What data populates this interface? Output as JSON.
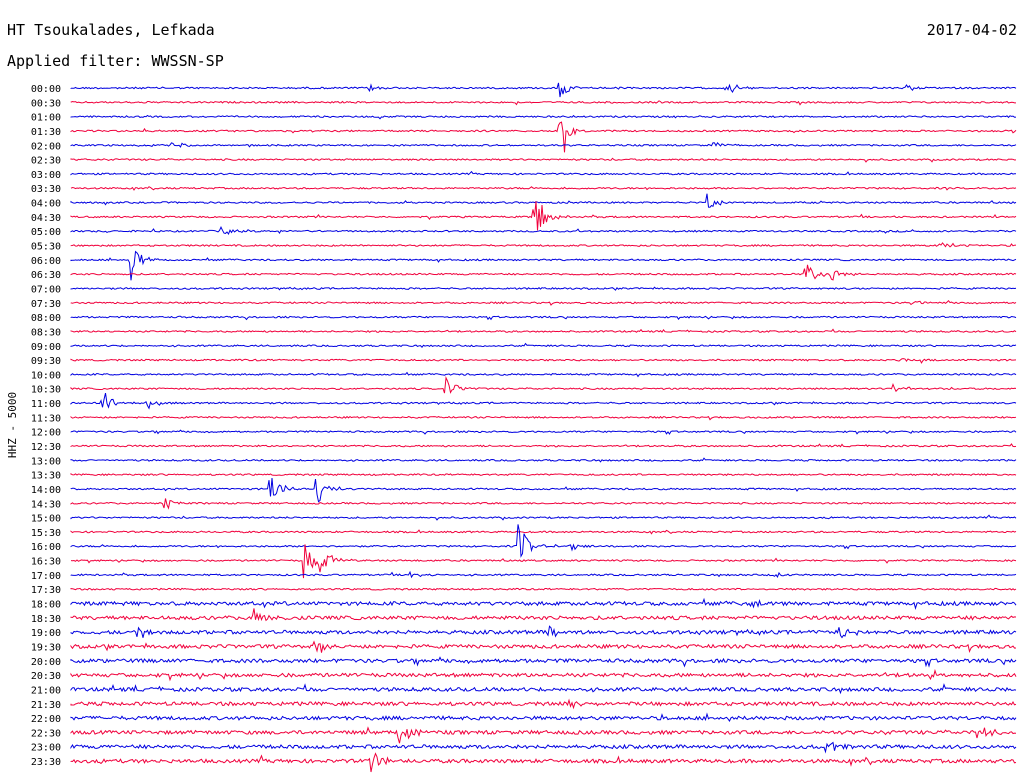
{
  "header": {
    "station": "HT Tsoukalades, Lefkada",
    "date": "2017-04-02",
    "filter": "Applied filter: WWSSN-SP"
  },
  "chart_data": {
    "type": "line",
    "title": "HT Tsoukalades, Lefkada",
    "ylabel": "HHZ - 5000",
    "row_labels": [
      "00:00",
      "00:30",
      "01:00",
      "01:30",
      "02:00",
      "02:30",
      "03:00",
      "03:30",
      "04:00",
      "04:30",
      "05:00",
      "05:30",
      "06:00",
      "06:30",
      "07:00",
      "07:30",
      "08:00",
      "08:30",
      "09:00",
      "09:30",
      "10:00",
      "10:30",
      "11:00",
      "11:30",
      "12:00",
      "12:30",
      "13:00",
      "13:30",
      "14:00",
      "14:30",
      "15:00",
      "15:30",
      "16:00",
      "16:30",
      "17:00",
      "17:30",
      "18:00",
      "18:30",
      "19:00",
      "19:30",
      "20:00",
      "20:30",
      "21:00",
      "21:30",
      "22:00",
      "22:30",
      "23:00",
      "23:30"
    ],
    "series_colors": [
      "#0000e0",
      "#f0003c"
    ],
    "row_minutes": 30,
    "events": [
      {
        "row": 0,
        "minute": 15.5,
        "amp": 11
      },
      {
        "row": 0,
        "minute": 9.5,
        "amp": 3
      },
      {
        "row": 0,
        "minute": 20.8,
        "amp": 8
      },
      {
        "row": 0,
        "minute": 26.5,
        "amp": 4
      },
      {
        "row": 3,
        "minute": 15.5,
        "amp": 14
      },
      {
        "row": 4,
        "minute": 3.2,
        "amp": 4
      },
      {
        "row": 4,
        "minute": 20.4,
        "amp": 3
      },
      {
        "row": 8,
        "minute": 20.2,
        "amp": 10
      },
      {
        "row": 9,
        "minute": 14.7,
        "amp": 22
      },
      {
        "row": 10,
        "minute": 4.8,
        "amp": 5
      },
      {
        "row": 11,
        "minute": 35.0,
        "amp": 6
      },
      {
        "row": 11,
        "minute": 27.6,
        "amp": 6
      },
      {
        "row": 12,
        "minute": 1.9,
        "amp": 14
      },
      {
        "row": 13,
        "minute": 23.3,
        "amp": 14
      },
      {
        "row": 13,
        "minute": 24.1,
        "amp": 14
      },
      {
        "row": 15,
        "minute": 26.7,
        "amp": 3
      },
      {
        "row": 19,
        "minute": 26.3,
        "amp": 3
      },
      {
        "row": 21,
        "minute": 26.1,
        "amp": 5
      },
      {
        "row": 21,
        "minute": 11.9,
        "amp": 12
      },
      {
        "row": 22,
        "minute": 1.0,
        "amp": 14
      },
      {
        "row": 22,
        "minute": 2.4,
        "amp": 6
      },
      {
        "row": 22,
        "minute": 33.3,
        "amp": 14
      },
      {
        "row": 28,
        "minute": 6.3,
        "amp": 18
      },
      {
        "row": 28,
        "minute": 7.8,
        "amp": 18
      },
      {
        "row": 29,
        "minute": 3.0,
        "amp": 6
      },
      {
        "row": 32,
        "minute": 14.2,
        "amp": 22
      },
      {
        "row": 32,
        "minute": 15.9,
        "amp": 6
      },
      {
        "row": 33,
        "minute": 7.4,
        "amp": 18
      },
      {
        "row": 33,
        "minute": 7.9,
        "amp": 18
      },
      {
        "row": 34,
        "minute": 10.8,
        "amp": 4
      },
      {
        "row": 34,
        "minute": 22.3,
        "amp": 4
      },
      {
        "row": 36,
        "minute": 21.6,
        "amp": 5
      },
      {
        "row": 37,
        "minute": 5.8,
        "amp": 12
      },
      {
        "row": 37,
        "minute": 30.2,
        "amp": 12
      },
      {
        "row": 38,
        "minute": 2.1,
        "amp": 8
      },
      {
        "row": 38,
        "minute": 15.1,
        "amp": 8
      },
      {
        "row": 38,
        "minute": 24.4,
        "amp": 10
      },
      {
        "row": 39,
        "minute": 7.7,
        "amp": 6
      },
      {
        "row": 41,
        "minute": 33.1,
        "amp": 20
      },
      {
        "row": 41,
        "minute": 27.3,
        "amp": 6
      },
      {
        "row": 43,
        "minute": 15.8,
        "amp": 6
      },
      {
        "row": 44,
        "minute": 33.0,
        "amp": 10
      },
      {
        "row": 45,
        "minute": 10.4,
        "amp": 14
      },
      {
        "row": 45,
        "minute": 28.8,
        "amp": 8
      },
      {
        "row": 46,
        "minute": 24.0,
        "amp": 8
      },
      {
        "row": 47,
        "minute": 9.5,
        "amp": 14
      },
      {
        "row": 47,
        "minute": 35.5,
        "amp": 10
      }
    ]
  }
}
